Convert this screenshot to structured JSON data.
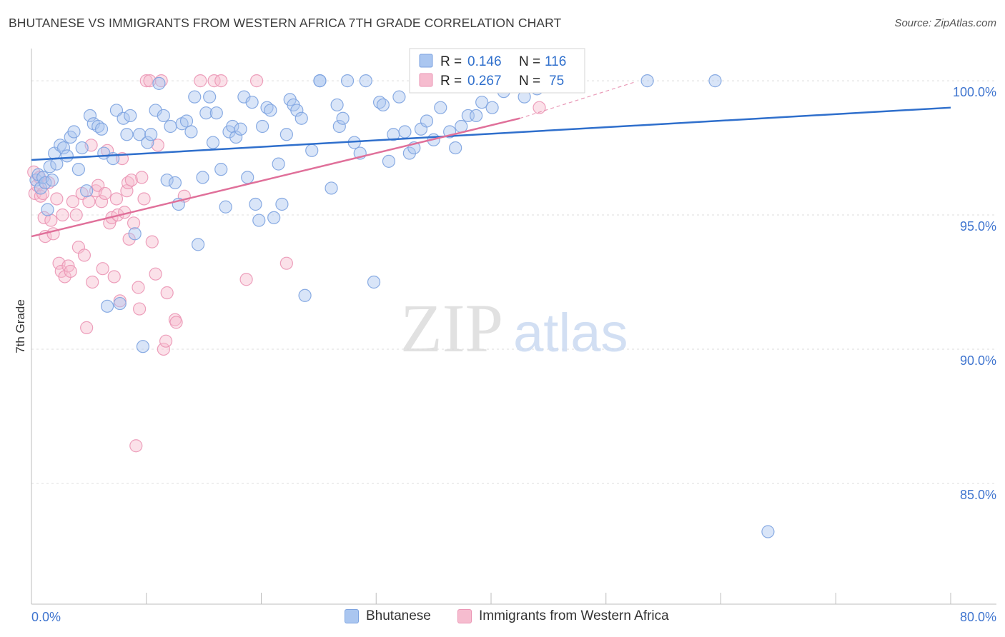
{
  "header": {
    "title": "BHUTANESE VS IMMIGRANTS FROM WESTERN AFRICA 7TH GRADE CORRELATION CHART",
    "source": "Source: ZipAtlas.com"
  },
  "watermark": {
    "zip": "ZIP",
    "atlas": "atlas"
  },
  "colors": {
    "blue": "#2f6fcc",
    "blue_fill": "#aac6f0",
    "blue_stroke": "#7da3e0",
    "pink": "#e0709a",
    "pink_fill": "#f6bccf",
    "pink_stroke": "#eb96b5",
    "tick_label": "#3e74cf",
    "grid": "#dddddd"
  },
  "legend_top": {
    "rows": [
      {
        "r_label": "R =",
        "r_value": "0.146",
        "n_label": "N =",
        "n_value": "116"
      },
      {
        "r_label": "R =",
        "r_value": "0.267",
        "n_label": "N =",
        "n_value": "75"
      }
    ]
  },
  "legend_bottom": {
    "items": [
      "Bhutanese",
      "Immigrants from Western Africa"
    ]
  },
  "chart_data": {
    "type": "scatter",
    "title": "BHUTANESE VS IMMIGRANTS FROM WESTERN AFRICA 7TH GRADE CORRELATION CHART",
    "xlabel": "",
    "ylabel": "7th Grade",
    "xlim": [
      0,
      80
    ],
    "ylim": [
      80.5,
      101.2
    ],
    "x_tick_labels": [
      "0.0%",
      "80.0%"
    ],
    "y_ticks": [
      85,
      90,
      95,
      100
    ],
    "y_tick_labels": [
      "85.0%",
      "90.0%",
      "95.0%",
      "100.0%"
    ],
    "legend": "top-center",
    "series": [
      {
        "name": "Bhutanese",
        "R": 0.146,
        "N": 116,
        "trend": {
          "x0": 0,
          "y0": 97.05,
          "x1": 80,
          "y1": 99.0
        },
        "points": [
          [
            0.4,
            96.3
          ],
          [
            0.6,
            96.5
          ],
          [
            0.8,
            96.0
          ],
          [
            1.0,
            96.4
          ],
          [
            1.2,
            96.2
          ],
          [
            1.4,
            95.2
          ],
          [
            1.6,
            96.8
          ],
          [
            1.8,
            96.3
          ],
          [
            2.0,
            97.3
          ],
          [
            2.2,
            96.9
          ],
          [
            2.5,
            97.6
          ],
          [
            2.8,
            97.5
          ],
          [
            3.1,
            97.2
          ],
          [
            3.4,
            97.9
          ],
          [
            3.7,
            98.1
          ],
          [
            4.1,
            96.7
          ],
          [
            4.4,
            97.5
          ],
          [
            4.8,
            95.9
          ],
          [
            5.1,
            98.7
          ],
          [
            5.4,
            98.4
          ],
          [
            5.8,
            98.3
          ],
          [
            6.1,
            98.2
          ],
          [
            6.3,
            97.3
          ],
          [
            6.6,
            91.6
          ],
          [
            7.1,
            97.1
          ],
          [
            7.4,
            98.9
          ],
          [
            7.7,
            91.7
          ],
          [
            8.0,
            98.6
          ],
          [
            8.3,
            98.0
          ],
          [
            8.6,
            98.7
          ],
          [
            9.0,
            94.3
          ],
          [
            9.4,
            98.0
          ],
          [
            9.7,
            90.1
          ],
          [
            10.1,
            97.7
          ],
          [
            10.4,
            98.0
          ],
          [
            10.8,
            98.9
          ],
          [
            11.1,
            99.9
          ],
          [
            11.5,
            98.7
          ],
          [
            11.8,
            96.3
          ],
          [
            12.1,
            98.3
          ],
          [
            12.5,
            96.2
          ],
          [
            12.8,
            95.4
          ],
          [
            13.1,
            98.4
          ],
          [
            13.5,
            98.5
          ],
          [
            13.9,
            98.1
          ],
          [
            14.2,
            99.4
          ],
          [
            14.5,
            93.9
          ],
          [
            14.9,
            96.4
          ],
          [
            15.2,
            98.8
          ],
          [
            15.5,
            99.4
          ],
          [
            15.8,
            97.7
          ],
          [
            16.1,
            98.8
          ],
          [
            16.5,
            96.7
          ],
          [
            16.9,
            95.3
          ],
          [
            17.2,
            98.1
          ],
          [
            17.5,
            98.3
          ],
          [
            17.8,
            97.9
          ],
          [
            18.2,
            98.2
          ],
          [
            18.5,
            99.4
          ],
          [
            18.8,
            96.4
          ],
          [
            19.2,
            99.2
          ],
          [
            19.5,
            95.4
          ],
          [
            19.8,
            94.8
          ],
          [
            20.1,
            98.3
          ],
          [
            20.5,
            99.0
          ],
          [
            20.8,
            98.9
          ],
          [
            21.1,
            94.9
          ],
          [
            21.5,
            96.9
          ],
          [
            21.8,
            95.4
          ],
          [
            22.2,
            98.0
          ],
          [
            22.5,
            99.3
          ],
          [
            22.8,
            99.1
          ],
          [
            23.1,
            98.9
          ],
          [
            23.5,
            98.6
          ],
          [
            23.8,
            92.0
          ],
          [
            24.4,
            97.4
          ],
          [
            25.1,
            100.0
          ],
          [
            25.1,
            100.0
          ],
          [
            26.1,
            96.0
          ],
          [
            26.6,
            99.1
          ],
          [
            26.8,
            98.3
          ],
          [
            27.1,
            98.6
          ],
          [
            27.5,
            100.0
          ],
          [
            28.1,
            97.7
          ],
          [
            28.6,
            97.3
          ],
          [
            29.1,
            100.0
          ],
          [
            29.8,
            92.5
          ],
          [
            30.3,
            99.2
          ],
          [
            30.6,
            99.1
          ],
          [
            31.1,
            97.0
          ],
          [
            31.5,
            98.0
          ],
          [
            32.0,
            99.4
          ],
          [
            32.5,
            98.1
          ],
          [
            32.9,
            97.3
          ],
          [
            33.3,
            97.5
          ],
          [
            33.9,
            98.2
          ],
          [
            34.4,
            98.5
          ],
          [
            35.0,
            97.8
          ],
          [
            35.6,
            99.0
          ],
          [
            36.4,
            98.1
          ],
          [
            36.9,
            97.5
          ],
          [
            37.4,
            98.3
          ],
          [
            38.0,
            98.7
          ],
          [
            38.7,
            98.7
          ],
          [
            39.2,
            99.2
          ],
          [
            40.1,
            99.0
          ],
          [
            41.1,
            99.6
          ],
          [
            42.9,
            99.4
          ],
          [
            43.7,
            99.9
          ],
          [
            44.0,
            99.7
          ],
          [
            53.6,
            100.0
          ],
          [
            59.5,
            100.0
          ],
          [
            64.1,
            83.2
          ]
        ]
      },
      {
        "name": "Immigrants from Western Africa",
        "R": 0.267,
        "N": 75,
        "trend": {
          "x0": 0,
          "y0": 94.2,
          "x1": 42.5,
          "y1": 98.6
        },
        "trend_dashed": {
          "x0": 42.5,
          "y0": 98.6,
          "x1": 52.5,
          "y1": 99.95
        },
        "points": [
          [
            0.2,
            96.6
          ],
          [
            0.3,
            95.8
          ],
          [
            0.5,
            96.1
          ],
          [
            0.7,
            96.4
          ],
          [
            0.8,
            95.7
          ],
          [
            1.0,
            95.8
          ],
          [
            1.1,
            94.9
          ],
          [
            1.2,
            94.2
          ],
          [
            1.5,
            96.2
          ],
          [
            1.7,
            94.8
          ],
          [
            1.9,
            94.3
          ],
          [
            2.2,
            95.6
          ],
          [
            2.4,
            93.2
          ],
          [
            2.6,
            92.9
          ],
          [
            2.7,
            95.0
          ],
          [
            2.9,
            92.7
          ],
          [
            3.2,
            93.1
          ],
          [
            3.4,
            92.9
          ],
          [
            3.6,
            95.5
          ],
          [
            3.9,
            95.0
          ],
          [
            4.1,
            93.8
          ],
          [
            4.4,
            95.8
          ],
          [
            4.6,
            93.5
          ],
          [
            4.8,
            90.8
          ],
          [
            5.0,
            95.5
          ],
          [
            5.2,
            97.6
          ],
          [
            5.3,
            92.5
          ],
          [
            5.6,
            95.9
          ],
          [
            5.8,
            96.1
          ],
          [
            6.1,
            95.5
          ],
          [
            6.2,
            93.0
          ],
          [
            6.4,
            95.8
          ],
          [
            6.6,
            97.4
          ],
          [
            6.8,
            94.7
          ],
          [
            7.0,
            94.9
          ],
          [
            7.2,
            92.7
          ],
          [
            7.4,
            95.6
          ],
          [
            7.5,
            95.0
          ],
          [
            7.7,
            91.8
          ],
          [
            7.9,
            97.1
          ],
          [
            8.1,
            95.1
          ],
          [
            8.3,
            95.9
          ],
          [
            8.4,
            96.2
          ],
          [
            8.5,
            94.1
          ],
          [
            8.7,
            96.3
          ],
          [
            8.9,
            94.7
          ],
          [
            9.1,
            86.4
          ],
          [
            9.3,
            92.3
          ],
          [
            9.4,
            91.5
          ],
          [
            9.6,
            96.4
          ],
          [
            9.8,
            95.6
          ],
          [
            10.0,
            100.0
          ],
          [
            10.3,
            100.0
          ],
          [
            10.5,
            94.0
          ],
          [
            10.8,
            92.8
          ],
          [
            11.0,
            97.6
          ],
          [
            11.3,
            100.0
          ],
          [
            11.5,
            90.0
          ],
          [
            11.7,
            90.3
          ],
          [
            11.8,
            92.1
          ],
          [
            12.5,
            91.1
          ],
          [
            12.6,
            91.0
          ],
          [
            13.3,
            95.7
          ],
          [
            14.7,
            100.0
          ],
          [
            15.9,
            100.0
          ],
          [
            16.5,
            100.0
          ],
          [
            18.7,
            92.6
          ],
          [
            19.6,
            100.0
          ],
          [
            22.2,
            93.2
          ],
          [
            44.2,
            99.0
          ]
        ]
      }
    ]
  }
}
